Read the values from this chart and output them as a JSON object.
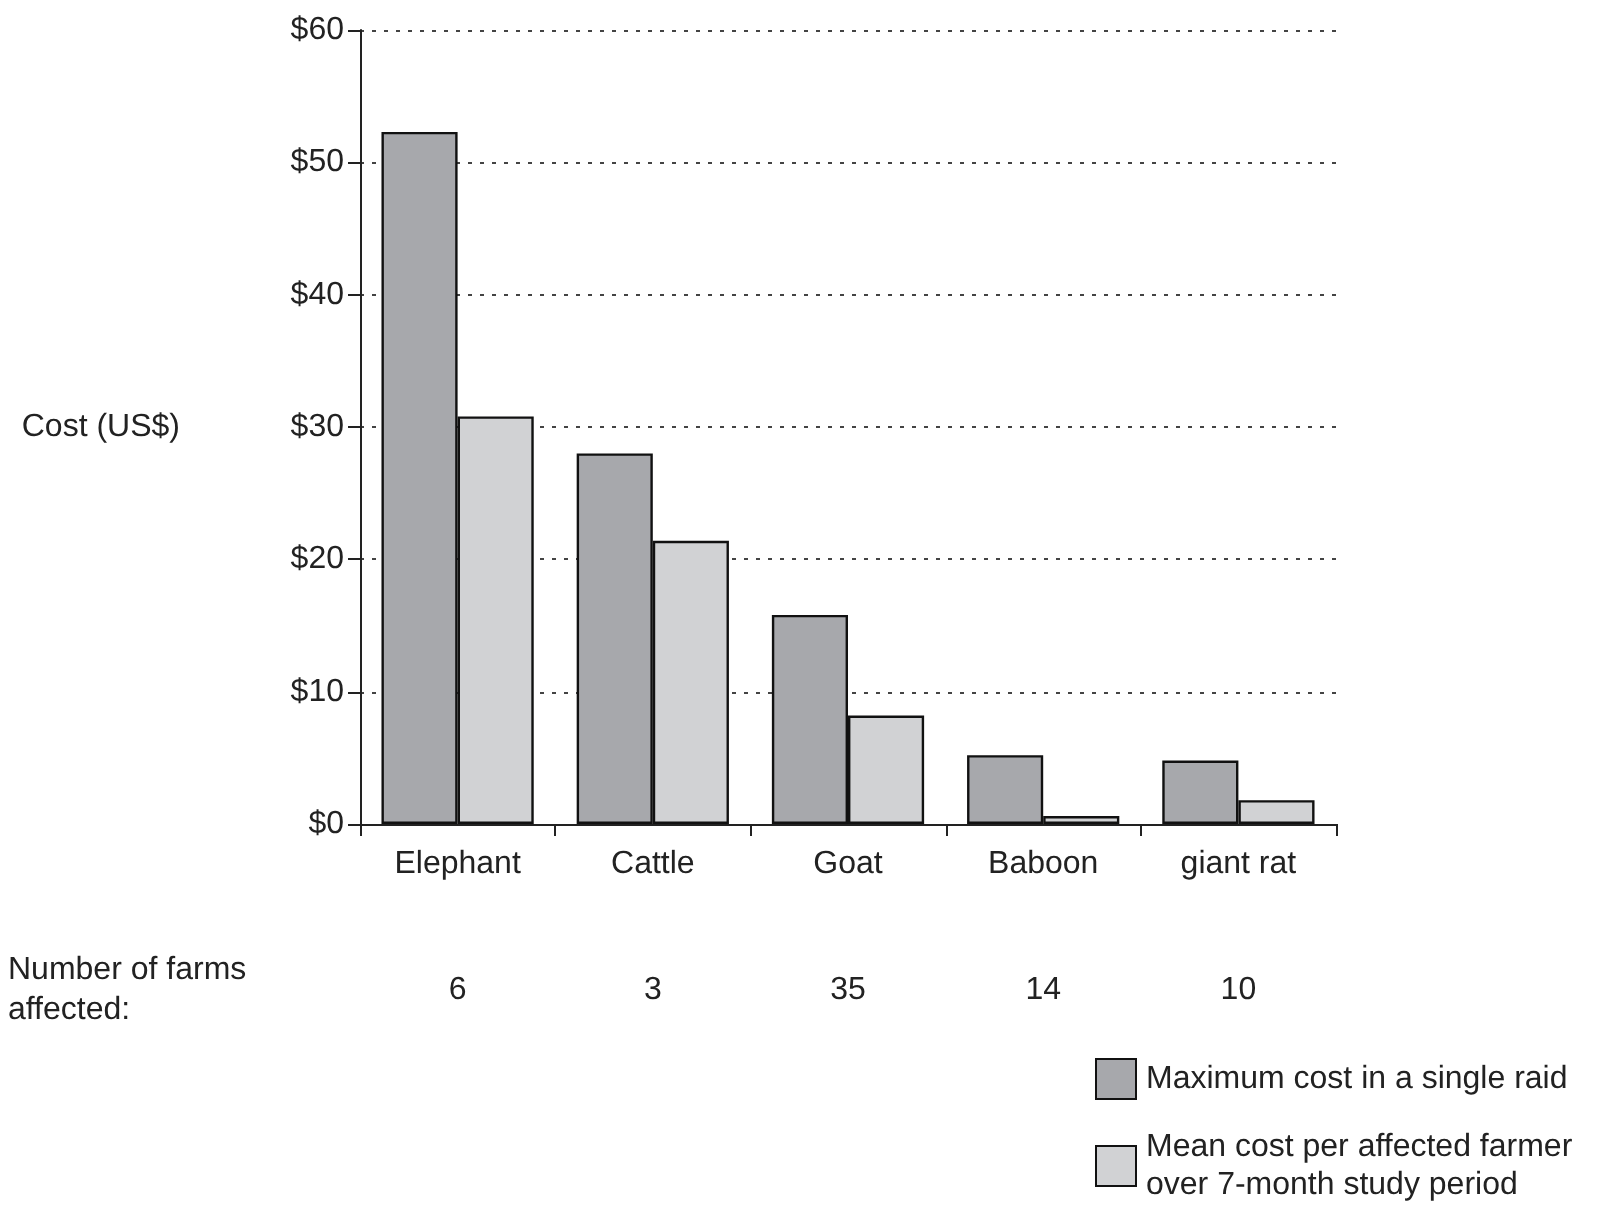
{
  "chart_data": {
    "type": "bar",
    "ylabel": "Cost (US$)",
    "categories": [
      "Elephant",
      "Cattle",
      "Goat",
      "Baboon",
      "giant rat"
    ],
    "series": [
      {
        "name": "Maximum cost in a single raid",
        "color": "#a7a8ac",
        "values": [
          52.3,
          28.0,
          15.8,
          5.2,
          4.8
        ]
      },
      {
        "name": "Mean cost per affected farmer over 7-month study period",
        "color": "#d1d2d4",
        "values": [
          30.8,
          21.4,
          8.2,
          0.6,
          1.8
        ]
      }
    ],
    "ylim": [
      0,
      60
    ],
    "yticks": [
      {
        "value": 0,
        "label": "$0"
      },
      {
        "value": 10,
        "label": "$10"
      },
      {
        "value": 20,
        "label": "$20"
      },
      {
        "value": 30,
        "label": "$30"
      },
      {
        "value": 40,
        "label": "$40"
      },
      {
        "value": 50,
        "label": "$50"
      },
      {
        "value": 60,
        "label": "$60"
      }
    ],
    "grid": "y",
    "legend": "bottom right",
    "annotations": [
      "Number of farms\naffected:",
      "6",
      "3",
      "35",
      "14",
      "10"
    ]
  }
}
